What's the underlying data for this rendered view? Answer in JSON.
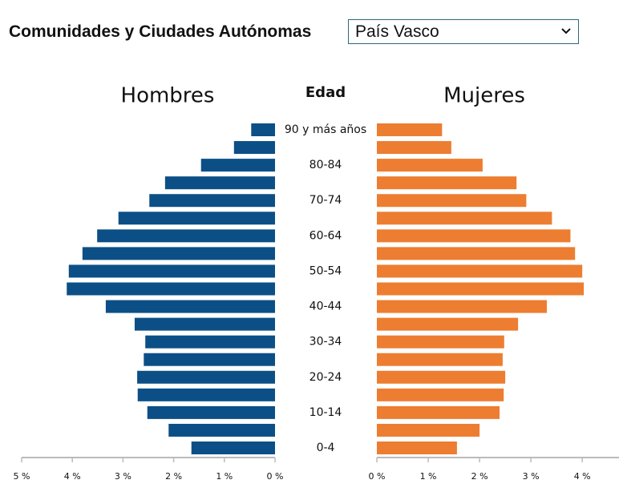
{
  "header": {
    "label": "Comunidades y Ciudades Autónomas",
    "selected": "País Vasco"
  },
  "chart_data": {
    "type": "population-pyramid",
    "categories_title": "Edad",
    "categories": [
      "90 y más años",
      null,
      "80-84",
      null,
      "70-74",
      null,
      "60-64",
      null,
      "50-54",
      null,
      "40-44",
      null,
      "30-34",
      null,
      "20-24",
      null,
      "10-14",
      null,
      "0-4"
    ],
    "series": [
      {
        "name": "Hombres",
        "color": "#0b4f86",
        "values": [
          0.47,
          0.81,
          1.46,
          2.17,
          2.48,
          3.09,
          3.51,
          3.8,
          4.07,
          4.11,
          3.34,
          2.77,
          2.56,
          2.59,
          2.72,
          2.71,
          2.52,
          2.1,
          1.65
        ],
        "xlim": [
          0,
          5
        ],
        "xticks": [
          {
            "value": 5,
            "label": "5 %"
          },
          {
            "value": 4,
            "label": "4 %"
          },
          {
            "value": 3,
            "label": "3 %"
          },
          {
            "value": 2,
            "label": "2 %"
          },
          {
            "value": 1,
            "label": "1 %"
          },
          {
            "value": 0,
            "label": "0 %"
          }
        ]
      },
      {
        "name": "Mujeres",
        "color": "#ed7d31",
        "values": [
          1.27,
          1.45,
          2.06,
          2.72,
          2.91,
          3.41,
          3.77,
          3.86,
          4.0,
          4.03,
          3.31,
          2.75,
          2.48,
          2.45,
          2.5,
          2.47,
          2.39,
          2.0,
          1.56
        ],
        "xlim": [
          0,
          4.7
        ],
        "xticks": [
          {
            "value": 0,
            "label": "0 %"
          },
          {
            "value": 1,
            "label": "1 %"
          },
          {
            "value": 2,
            "label": "2 %"
          },
          {
            "value": 3,
            "label": "3 %"
          },
          {
            "value": 4,
            "label": "4 %"
          }
        ]
      }
    ]
  }
}
